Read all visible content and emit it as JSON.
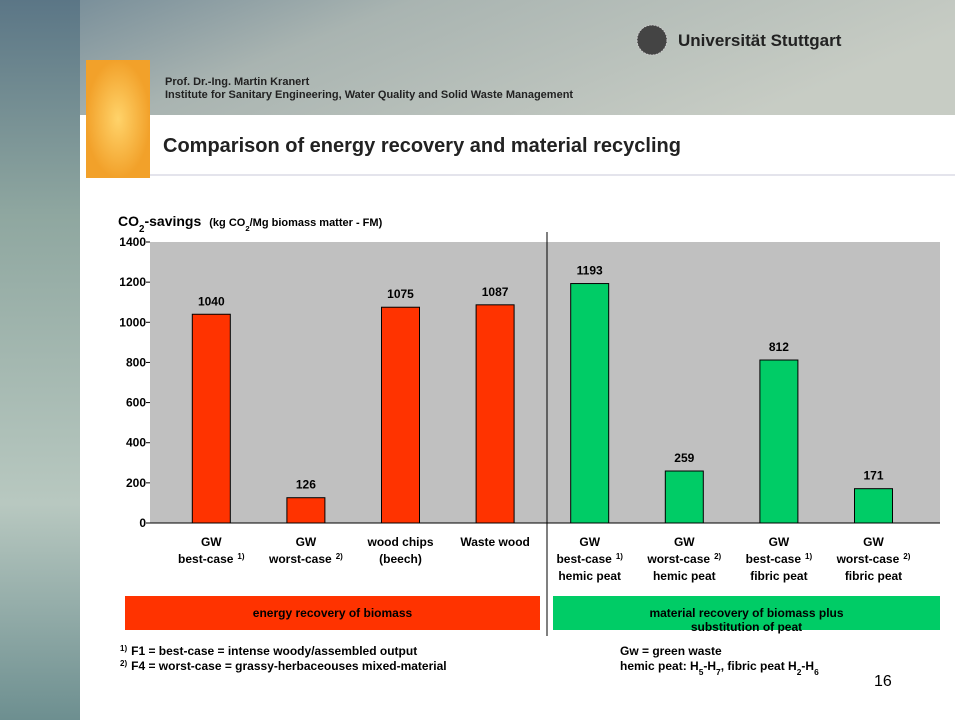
{
  "header": {
    "university": "Universität Stuttgart",
    "author": "Prof. Dr.-Ing. Martin Kranert",
    "institute": "Institute for Sanitary Engineering, Water Quality and Solid Waste Management",
    "title": "Comparison of energy recovery and material recycling"
  },
  "chart_data": {
    "type": "bar",
    "y_label_parts": [
      "CO",
      "2",
      "-savings"
    ],
    "y_unit_parts": [
      "(kg CO",
      "2",
      "/Mg biomass matter - FM)"
    ],
    "categories": [
      [
        "GW",
        "best-case"
      ],
      [
        "GW",
        "worst-case"
      ],
      [
        "wood chips",
        "(beech)"
      ],
      [
        "Waste wood"
      ],
      [
        "GW",
        "best-case",
        "hemic peat"
      ],
      [
        "GW",
        "worst-case",
        "hemic peat"
      ],
      [
        "GW",
        "best-case",
        "fibric peat"
      ],
      [
        "GW",
        "worst-case",
        "fibric peat"
      ]
    ],
    "category_notes": [
      "1)",
      "2)",
      null,
      null,
      "1)",
      "2)",
      "1)",
      "2)"
    ],
    "values": [
      1040,
      126,
      1075,
      1087,
      1193,
      259,
      812,
      171
    ],
    "colors": [
      "#ff3300",
      "#ff3300",
      "#ff3300",
      "#ff3300",
      "#00cc66",
      "#00cc66",
      "#00cc66",
      "#00cc66"
    ],
    "ylim": [
      0,
      1400
    ],
    "yticks": [
      0,
      200,
      400,
      600,
      800,
      1000,
      1200,
      1400
    ],
    "groups": [
      {
        "lines": [
          "energy recovery of biomass"
        ],
        "color": "#ff3300"
      },
      {
        "lines": [
          "material recovery of biomass  plus",
          "substitution of peat"
        ],
        "color": "#00cc66"
      }
    ]
  },
  "footnotes": [
    {
      "mark": "1)",
      "text": "F1 = best-case = intense woody/assembled output"
    },
    {
      "mark": "2)",
      "text": "F4 = worst-case = grassy-herbaceouses mixed-material"
    }
  ],
  "notes": {
    "green_waste": "Gw =  green waste",
    "peat_parts": [
      "hemic peat: H",
      "5",
      "-H",
      "7",
      ", fibric peat H",
      "2",
      "-H",
      "6"
    ]
  },
  "page_number": "16"
}
